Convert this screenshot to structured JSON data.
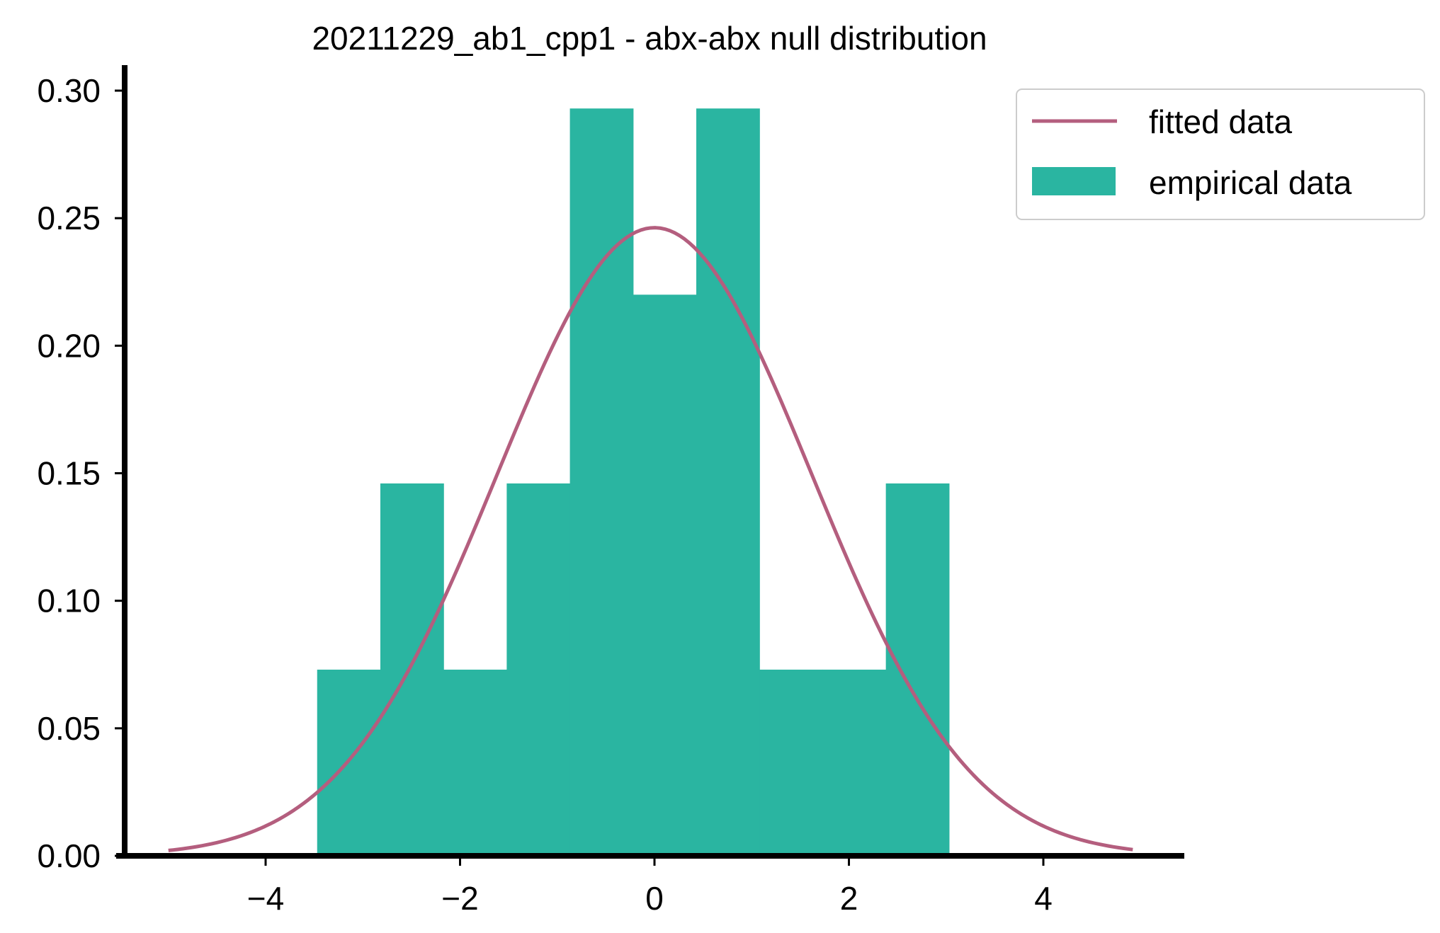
{
  "chart_data": {
    "type": "bar",
    "title": "20211229_ab1_cpp1 - abx-abx null distribution",
    "xlabel": "",
    "ylabel": "",
    "xlim": [
      -5.45,
      5.45
    ],
    "ylim": [
      0,
      0.31
    ],
    "x_ticks": [
      {
        "value": -4,
        "label": "−4"
      },
      {
        "value": -2,
        "label": "−2"
      },
      {
        "value": 0,
        "label": "0"
      },
      {
        "value": 2,
        "label": "2"
      },
      {
        "value": 4,
        "label": "4"
      }
    ],
    "y_ticks": [
      {
        "value": 0.0,
        "label": "0.00"
      },
      {
        "value": 0.05,
        "label": "0.05"
      },
      {
        "value": 0.1,
        "label": "0.10"
      },
      {
        "value": 0.15,
        "label": "0.15"
      },
      {
        "value": 0.2,
        "label": "0.20"
      },
      {
        "value": 0.25,
        "label": "0.25"
      },
      {
        "value": 0.3,
        "label": "0.30"
      }
    ],
    "histogram": {
      "name": "empirical data",
      "color": "#2ab5a1",
      "bin_edges": [
        -3.47,
        -2.82,
        -2.17,
        -1.52,
        -0.87,
        -0.22,
        0.43,
        1.08,
        1.73,
        2.38,
        3.03
      ],
      "values": [
        0.073,
        0.146,
        0.073,
        0.146,
        0.293,
        0.22,
        0.293,
        0.073,
        0.073,
        0.146
      ]
    },
    "fit": {
      "name": "fitted data",
      "color": "#b45e7e",
      "distribution": "normal",
      "mean": 0.0,
      "std": 1.62,
      "x_range": [
        -5.0,
        4.92
      ]
    },
    "grid": false,
    "legend_position": "upper right, outside plot area"
  }
}
